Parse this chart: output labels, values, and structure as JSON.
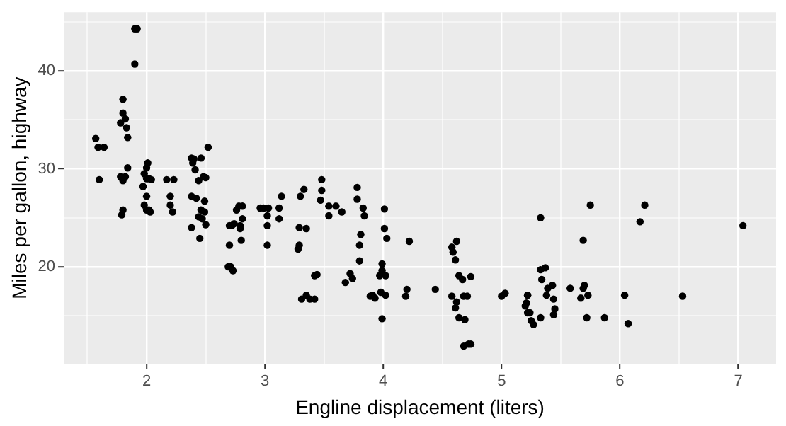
{
  "chart_data": {
    "type": "scatter",
    "xlabel": "Engline displacement (liters)",
    "ylabel": "Miles per gallon, highway",
    "color": "#000000",
    "marker": "circle",
    "grid": true,
    "xlim": [
      1.3,
      7.32
    ],
    "ylim": [
      10.1,
      46
    ],
    "xticks": [
      {
        "value": 1.5,
        "label": null
      },
      2,
      {
        "value": 2.5,
        "label": null
      },
      3,
      {
        "value": 3.5,
        "label": null
      },
      4,
      {
        "value": 4.5,
        "label": null
      },
      5,
      {
        "value": 5.5,
        "label": null
      },
      6,
      {
        "value": 6.5,
        "label": null
      },
      7
    ],
    "yticks": [
      {
        "value": 15,
        "label": null
      },
      20,
      {
        "value": 25,
        "label": null
      },
      30,
      {
        "value": 35,
        "label": null
      },
      40,
      {
        "value": 45,
        "label": null
      }
    ],
    "x": [
      1.57,
      1.59,
      1.64,
      1.6,
      1.9,
      1.92,
      1.9,
      1.8,
      1.8,
      1.82,
      1.78,
      1.83,
      1.84,
      1.84,
      1.78,
      1.8,
      1.82,
      1.8,
      1.79,
      2.01,
      2.0,
      1.98,
      2.0,
      2.02,
      1.97,
      2.04,
      2.0,
      1.98,
      2.0,
      2.02,
      2.03,
      2.17,
      2.23,
      2.2,
      2.2,
      2.22,
      2.38,
      2.4,
      2.39,
      2.41,
      2.46,
      2.52,
      2.38,
      2.42,
      2.38,
      2.45,
      2.44,
      2.48,
      2.5,
      2.46,
      2.49,
      2.49,
      2.47,
      2.5,
      2.44,
      2.7,
      2.72,
      2.74,
      2.7,
      2.69,
      2.71,
      2.73,
      2.76,
      2.78,
      2.81,
      2.81,
      2.79,
      2.8,
      2.79,
      2.96,
      2.99,
      3.03,
      3.02,
      3.02,
      3.02,
      3.12,
      3.14,
      3.12,
      3.3,
      3.33,
      3.29,
      3.35,
      3.29,
      3.28,
      3.48,
      3.48,
      3.47,
      3.54,
      3.54,
      3.6,
      3.65,
      3.42,
      3.44,
      3.31,
      3.35,
      3.38,
      3.42,
      3.78,
      3.78,
      3.83,
      3.84,
      3.81,
      3.8,
      3.8,
      3.72,
      3.68,
      3.74,
      3.89,
      3.91,
      3.98,
      4.02,
      3.93,
      4.01,
      4.01,
      4.03,
      3.99,
      3.99,
      4.02,
      3.97,
      3.99,
      4.22,
      4.2,
      4.19,
      4.44,
      4.58,
      4.62,
      4.61,
      4.68,
      4.71,
      4.62,
      4.58,
      4.59,
      4.61,
      4.64,
      4.67,
      4.74,
      4.64,
      4.69,
      4.68,
      4.72,
      4.74,
      5.0,
      5.03,
      5.22,
      5.2,
      5.22,
      5.27,
      5.33,
      5.33,
      5.37,
      5.34,
      5.22,
      5.21,
      5.24,
      5.25,
      5.33,
      5.39,
      5.43,
      5.38,
      5.44,
      5.45,
      5.44,
      5.58,
      5.69,
      5.7,
      5.67,
      5.73,
      5.72,
      5.87,
      5.69,
      5.75,
      6.04,
      6.07,
      6.17,
      6.21,
      6.53,
      7.04
    ],
    "values": [
      33.1,
      32.2,
      32.2,
      28.9,
      44.3,
      44.3,
      40.7,
      37.1,
      35.7,
      35.1,
      34.7,
      34.2,
      33.2,
      30.1,
      29.2,
      28.8,
      29.2,
      25.8,
      25.3,
      30.6,
      30.1,
      29.5,
      29.0,
      29.0,
      28.2,
      28.9,
      27.2,
      26.3,
      25.8,
      25.8,
      25.6,
      28.9,
      28.9,
      27.2,
      26.3,
      25.6,
      31.1,
      31.0,
      30.6,
      29.9,
      31.1,
      32.2,
      27.2,
      27.0,
      24.0,
      22.9,
      28.8,
      29.2,
      29.1,
      25.8,
      25.6,
      26.7,
      24.9,
      24.3,
      25.1,
      24.2,
      24.2,
      24.4,
      22.2,
      20.0,
      20.0,
      19.6,
      25.8,
      26.2,
      26.2,
      24.9,
      24.2,
      22.7,
      23.9,
      26.0,
      26.0,
      26.0,
      25.2,
      24.2,
      22.2,
      26.0,
      27.2,
      24.9,
      27.2,
      27.9,
      24.0,
      23.9,
      22.2,
      21.8,
      28.9,
      27.8,
      26.8,
      26.2,
      25.2,
      26.2,
      25.6,
      19.1,
      19.2,
      16.7,
      17.1,
      16.7,
      16.7,
      28.1,
      26.9,
      26.0,
      25.2,
      23.3,
      22.2,
      20.6,
      19.3,
      18.4,
      18.8,
      17.0,
      17.1,
      17.4,
      17.1,
      16.8,
      25.9,
      23.9,
      22.9,
      20.3,
      19.6,
      19.1,
      19.1,
      14.7,
      22.6,
      17.7,
      17.0,
      17.7,
      17.0,
      16.4,
      15.8,
      17.0,
      17.0,
      22.6,
      22.0,
      21.5,
      20.7,
      19.1,
      18.7,
      19.0,
      14.8,
      14.6,
      11.9,
      12.1,
      12.1,
      17.0,
      17.3,
      17.1,
      16.0,
      15.3,
      14.1,
      25.0,
      19.7,
      19.9,
      18.7,
      17.1,
      16.3,
      15.3,
      14.5,
      14.8,
      17.8,
      18.1,
      17.1,
      16.7,
      15.7,
      15.1,
      17.8,
      17.8,
      18.1,
      16.8,
      17.1,
      14.8,
      14.8,
      22.7,
      26.3,
      17.1,
      14.2,
      24.6,
      26.3,
      17.0,
      24.2
    ]
  }
}
